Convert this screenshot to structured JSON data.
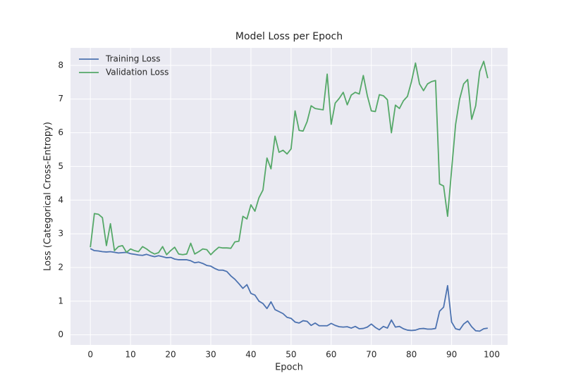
{
  "chart_data": {
    "type": "line",
    "title": "Model Loss per Epoch",
    "x_label": "Epoch",
    "y_label": "Loss (Categorical Cross-Entropy)",
    "x": [
      0,
      1,
      2,
      3,
      4,
      5,
      6,
      7,
      8,
      9,
      10,
      11,
      12,
      13,
      14,
      15,
      16,
      17,
      18,
      19,
      20,
      21,
      22,
      23,
      24,
      25,
      26,
      27,
      28,
      29,
      30,
      31,
      32,
      33,
      34,
      35,
      36,
      37,
      38,
      39,
      40,
      41,
      42,
      43,
      44,
      45,
      46,
      47,
      48,
      49,
      50,
      51,
      52,
      53,
      54,
      55,
      56,
      57,
      58,
      59,
      60,
      61,
      62,
      63,
      64,
      65,
      66,
      67,
      68,
      69,
      70,
      71,
      72,
      73,
      74,
      75,
      76,
      77,
      78,
      79,
      80,
      81,
      82,
      83,
      84,
      85,
      86,
      87,
      88,
      89,
      90,
      91,
      92,
      93,
      94,
      95,
      96,
      97,
      98,
      99
    ],
    "series": [
      {
        "name": "Training Loss",
        "color": "#4c72b0",
        "values": [
          2.56,
          2.5,
          2.49,
          2.47,
          2.46,
          2.47,
          2.45,
          2.43,
          2.44,
          2.45,
          2.41,
          2.39,
          2.37,
          2.36,
          2.39,
          2.35,
          2.32,
          2.35,
          2.32,
          2.29,
          2.3,
          2.25,
          2.23,
          2.23,
          2.23,
          2.2,
          2.14,
          2.16,
          2.12,
          2.06,
          2.04,
          1.97,
          1.92,
          1.92,
          1.88,
          1.75,
          1.65,
          1.52,
          1.38,
          1.49,
          1.23,
          1.18,
          1.0,
          0.93,
          0.78,
          0.98,
          0.75,
          0.69,
          0.63,
          0.52,
          0.49,
          0.38,
          0.35,
          0.42,
          0.4,
          0.28,
          0.35,
          0.27,
          0.27,
          0.27,
          0.34,
          0.28,
          0.24,
          0.23,
          0.24,
          0.2,
          0.25,
          0.18,
          0.19,
          0.23,
          0.32,
          0.22,
          0.15,
          0.25,
          0.2,
          0.44,
          0.23,
          0.25,
          0.18,
          0.14,
          0.13,
          0.14,
          0.18,
          0.19,
          0.17,
          0.17,
          0.19,
          0.7,
          0.82,
          1.46,
          0.38,
          0.18,
          0.15,
          0.32,
          0.41,
          0.24,
          0.12,
          0.11,
          0.18,
          0.2
        ]
      },
      {
        "name": "Validation Loss",
        "color": "#55a868",
        "values": [
          2.6,
          3.6,
          3.58,
          3.48,
          2.65,
          3.3,
          2.5,
          2.62,
          2.65,
          2.45,
          2.55,
          2.5,
          2.47,
          2.62,
          2.55,
          2.46,
          2.4,
          2.44,
          2.62,
          2.38,
          2.5,
          2.6,
          2.4,
          2.38,
          2.4,
          2.72,
          2.4,
          2.47,
          2.55,
          2.53,
          2.38,
          2.5,
          2.6,
          2.58,
          2.58,
          2.57,
          2.76,
          2.78,
          3.52,
          3.44,
          3.86,
          3.67,
          4.07,
          4.3,
          5.25,
          4.93,
          5.9,
          5.42,
          5.48,
          5.37,
          5.52,
          6.65,
          6.07,
          6.05,
          6.33,
          6.8,
          6.72,
          6.7,
          6.68,
          7.74,
          6.25,
          6.88,
          7.02,
          7.2,
          6.83,
          7.12,
          7.2,
          7.15,
          7.7,
          7.1,
          6.65,
          6.63,
          7.13,
          7.1,
          6.98,
          6.0,
          6.82,
          6.72,
          6.95,
          7.08,
          7.52,
          8.07,
          7.45,
          7.25,
          7.45,
          7.52,
          7.55,
          4.48,
          4.42,
          3.52,
          4.9,
          6.25,
          7.0,
          7.45,
          7.58,
          6.4,
          6.8,
          7.82,
          8.12,
          7.62
        ]
      }
    ],
    "xlim": [
      -4.95,
      103.95
    ],
    "xticks": [
      0,
      10,
      20,
      30,
      40,
      50,
      60,
      70,
      80,
      90,
      100
    ],
    "ylim": [
      -0.3,
      8.52
    ],
    "yticks": [
      0,
      1,
      2,
      3,
      4,
      5,
      6,
      7,
      8
    ],
    "grid": true,
    "legend": "upper left"
  }
}
